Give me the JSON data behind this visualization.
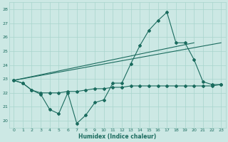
{
  "xlabel": "Humidex (Indice chaleur)",
  "bg_color": "#cce8e4",
  "line_color": "#1a6b5e",
  "grid_color": "#a8d4cc",
  "xlim": [
    -0.5,
    23.5
  ],
  "ylim": [
    19.5,
    28.5
  ],
  "yticks": [
    20,
    21,
    22,
    23,
    24,
    25,
    26,
    27,
    28
  ],
  "xticks": [
    0,
    1,
    2,
    3,
    4,
    5,
    6,
    7,
    8,
    9,
    10,
    11,
    12,
    13,
    14,
    15,
    16,
    17,
    18,
    19,
    20,
    21,
    22,
    23
  ],
  "series1_x": [
    0,
    1,
    2,
    3,
    4,
    5,
    6,
    7,
    8,
    9,
    10,
    11,
    12,
    13,
    14,
    15,
    16,
    17,
    18,
    19,
    20,
    21,
    22,
    23
  ],
  "series1_y": [
    22.9,
    22.7,
    22.2,
    21.9,
    20.8,
    20.5,
    22.0,
    19.8,
    20.4,
    21.3,
    21.5,
    22.7,
    22.7,
    24.1,
    25.4,
    26.5,
    27.2,
    27.8,
    25.6,
    25.6,
    24.4,
    22.8,
    22.6,
    22.6
  ],
  "series2_x": [
    0,
    1,
    2,
    3,
    4,
    5,
    6,
    7,
    8,
    9,
    10,
    11,
    12,
    13,
    14,
    15,
    16,
    17,
    18,
    19,
    20,
    21,
    22,
    23
  ],
  "series2_y": [
    22.9,
    22.7,
    22.2,
    22.0,
    22.0,
    22.0,
    22.1,
    22.1,
    22.2,
    22.3,
    22.3,
    22.4,
    22.4,
    22.5,
    22.5,
    22.5,
    22.5,
    22.5,
    22.5,
    22.5,
    22.5,
    22.5,
    22.5,
    22.6
  ],
  "series3_x": [
    0,
    23
  ],
  "series3_y": [
    22.9,
    25.6
  ],
  "series4_x": [
    0,
    20
  ],
  "series4_y": [
    22.9,
    25.6
  ]
}
